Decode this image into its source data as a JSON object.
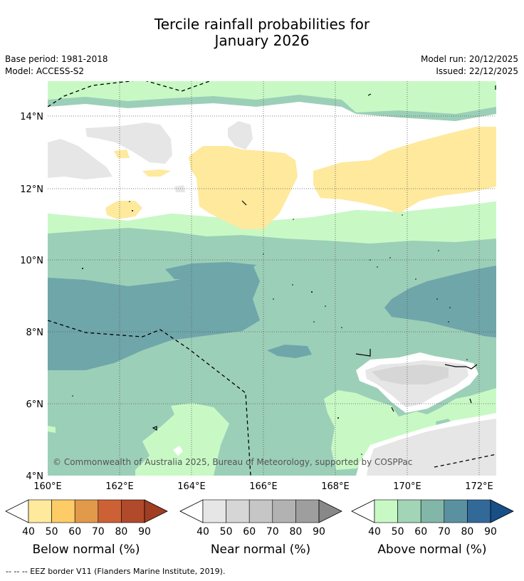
{
  "title": {
    "line1": "Tercile rainfall probabilities for",
    "line2": "January 2026"
  },
  "metadata": {
    "base_period": "Base period: 1981-2018",
    "model": "Model: ACCESS-S2",
    "model_run": "Model run: 20/12/2025",
    "issued": "Issued: 22/12/2025"
  },
  "map": {
    "x_ticks": [
      "160°E",
      "162°E",
      "164°E",
      "166°E",
      "168°E",
      "170°E",
      "172°E"
    ],
    "y_ticks": [
      "14°N",
      "12°N",
      "10°N",
      "8°N",
      "6°N",
      "4°N"
    ],
    "copyright": "© Commonwealth of Australia 2025, Bureau of Meteorology, supported by COSPPac"
  },
  "legends": {
    "below": {
      "title": "Below normal (%)",
      "ticks": [
        "40",
        "50",
        "60",
        "70",
        "80",
        "90"
      ],
      "colors": [
        "#ffffff",
        "#fee99d",
        "#fdcc66",
        "#e1994a",
        "#cd6136",
        "#b04a2a",
        "#a03d22"
      ]
    },
    "near": {
      "title": "Near normal (%)",
      "ticks": [
        "40",
        "50",
        "60",
        "70",
        "80",
        "90"
      ],
      "colors": [
        "#ffffff",
        "#e6e6e6",
        "#d6d6d6",
        "#c6c6c6",
        "#b2b2b2",
        "#9e9e9e",
        "#888888"
      ]
    },
    "above": {
      "title": "Above normal (%)",
      "ticks": [
        "40",
        "50",
        "60",
        "70",
        "80",
        "90"
      ],
      "colors": [
        "#ffffff",
        "#c8f9c5",
        "#a2d4b6",
        "#81b6a8",
        "#5a91a0",
        "#326999",
        "#174f86"
      ]
    }
  },
  "footnote": "--  --  -- EEZ border V11 (Flanders Marine Institute, 2019)."
}
